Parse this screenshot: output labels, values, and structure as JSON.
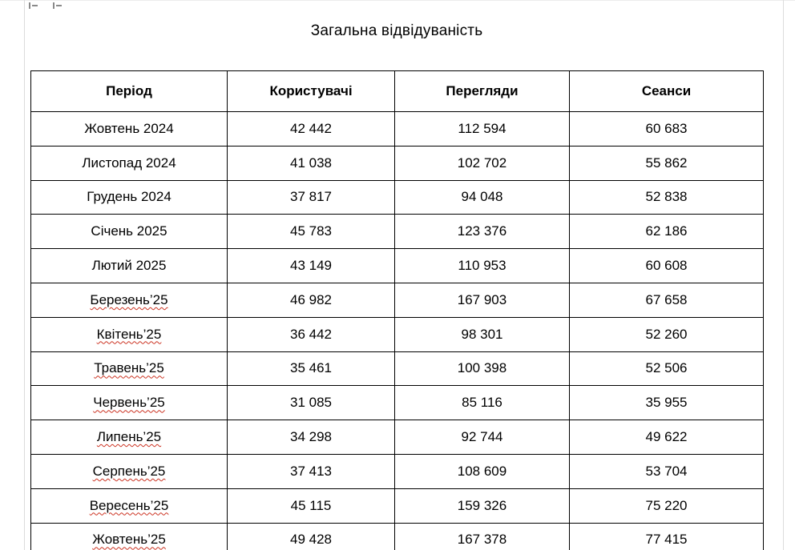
{
  "document": {
    "title": "Загальна відвідуваність"
  },
  "table": {
    "headers": [
      "Період",
      "Користувачі",
      "Перегляди",
      "Сеанси"
    ],
    "rows": [
      {
        "period": "Жовтень 2024",
        "users": "42 442",
        "views": "112 594",
        "sessions": "60 683",
        "misspelled": false
      },
      {
        "period": "Листопад 2024",
        "users": "41 038",
        "views": "102 702",
        "sessions": "55 862",
        "misspelled": false
      },
      {
        "period": "Грудень 2024",
        "users": "37 817",
        "views": "94 048",
        "sessions": "52 838",
        "misspelled": false
      },
      {
        "period": "Січень 2025",
        "users": "45 783",
        "views": "123 376",
        "sessions": "62 186",
        "misspelled": false
      },
      {
        "period": "Лютий 2025",
        "users": "43 149",
        "views": "110 953",
        "sessions": "60 608",
        "misspelled": false
      },
      {
        "period": "Березень’25",
        "users": "46 982",
        "views": "167 903",
        "sessions": "67 658",
        "misspelled": true
      },
      {
        "period": "Квітень’25",
        "users": "36 442",
        "views": "98 301",
        "sessions": "52 260",
        "misspelled": true
      },
      {
        "period": "Травень’25",
        "users": "35 461",
        "views": "100 398",
        "sessions": "52 506",
        "misspelled": true
      },
      {
        "period": "Червень’25",
        "users": "31 085",
        "views": "85 116",
        "sessions": "35 955",
        "misspelled": true
      },
      {
        "period": "Липень’25",
        "users": "34 298",
        "views": "92 744",
        "sessions": "49 622",
        "misspelled": true
      },
      {
        "period": "Серпень’25",
        "users": "37 413",
        "views": "108 609",
        "sessions": "53 704",
        "misspelled": true
      },
      {
        "period": "Вересень’25",
        "users": "45 115",
        "views": "159 326",
        "sessions": "75 220",
        "misspelled": true
      },
      {
        "period": "Жовтень’25",
        "users": "49 428",
        "views": "167 378",
        "sessions": "77 415",
        "misspelled": true
      }
    ]
  },
  "colors": {
    "table_border": "#000000",
    "spellcheck_underline": "#cc3322",
    "page_edge": "#dcdcdc"
  }
}
